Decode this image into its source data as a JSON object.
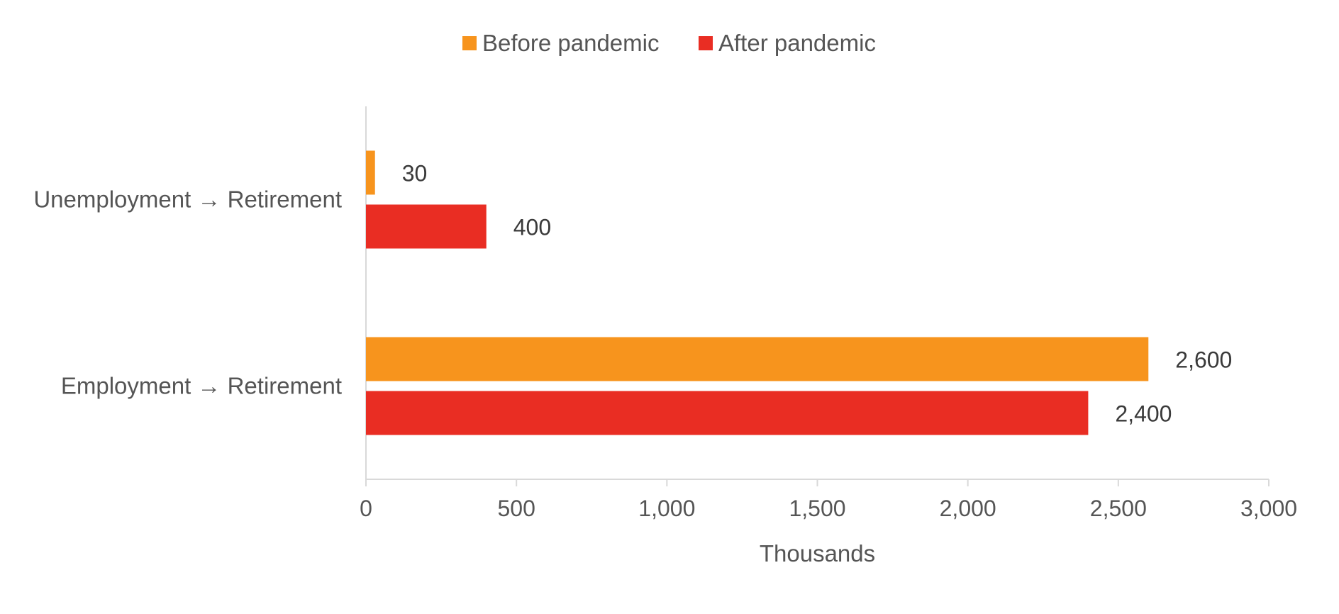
{
  "chart_data": {
    "type": "bar",
    "orientation": "horizontal",
    "categories": [
      "Unemployment → Retirement",
      "Employment → Retirement"
    ],
    "series": [
      {
        "name": "Before pandemic",
        "color": "#F7941D",
        "values": [
          30,
          2600
        ],
        "labels": [
          "30",
          "2,600"
        ]
      },
      {
        "name": "After pandemic",
        "color": "#E92D23",
        "values": [
          400,
          2400
        ],
        "labels": [
          "400",
          "2,400"
        ]
      }
    ],
    "xlim": [
      0,
      3000
    ],
    "xticks": [
      0,
      500,
      1000,
      1500,
      2000,
      2500,
      3000
    ],
    "xtick_labels": [
      "0",
      "500",
      "1,000",
      "1,500",
      "2,000",
      "2,500",
      "3,000"
    ],
    "xlabel": "Thousands",
    "ylabel": "",
    "title": "",
    "legend_position": "top-center",
    "grid": false
  }
}
